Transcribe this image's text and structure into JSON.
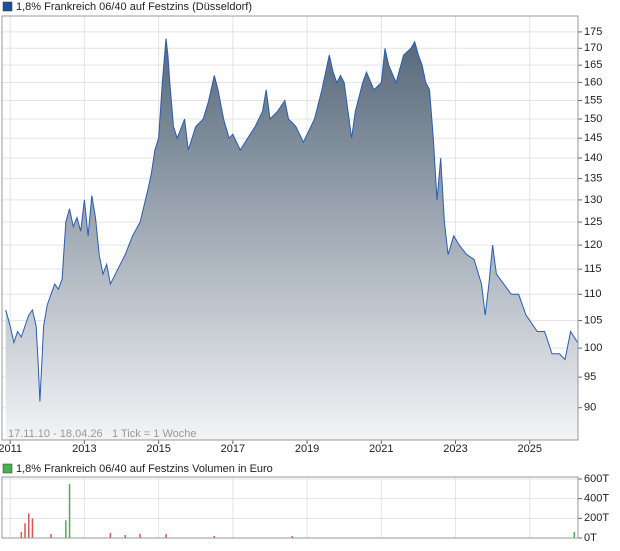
{
  "chart_data": [
    {
      "type": "area",
      "title": "1,8% Frankreich 06/40 auf Festzins (Düsseldorf)",
      "legend_color": "#1f4e9c",
      "color": "#2a5cb0",
      "fill_gradient": [
        "#56687a",
        "#f3f4f6"
      ],
      "log_scale": true,
      "grid": true,
      "annotations": [
        "17.11.10 - 18.04.26",
        "1 Tick = 1 Woche"
      ],
      "xlim": [
        2010.78,
        2026.3
      ],
      "xticks": [
        2011,
        2013,
        2015,
        2017,
        2019,
        2021,
        2023,
        2025
      ],
      "ylim": [
        85,
        180
      ],
      "yticks": [
        90,
        95,
        100,
        105,
        110,
        115,
        120,
        125,
        130,
        135,
        140,
        145,
        150,
        155,
        160,
        165,
        170,
        175
      ],
      "x": [
        2010.88,
        2011.0,
        2011.1,
        2011.2,
        2011.3,
        2011.4,
        2011.5,
        2011.6,
        2011.7,
        2011.75,
        2011.8,
        2011.85,
        2011.9,
        2012.0,
        2012.1,
        2012.2,
        2012.3,
        2012.4,
        2012.5,
        2012.6,
        2012.7,
        2012.8,
        2012.9,
        2013.0,
        2013.1,
        2013.2,
        2013.3,
        2013.4,
        2013.5,
        2013.6,
        2013.7,
        2013.9,
        2014.1,
        2014.3,
        2014.5,
        2014.7,
        2014.8,
        2014.9,
        2015.0,
        2015.1,
        2015.2,
        2015.25,
        2015.3,
        2015.4,
        2015.5,
        2015.7,
        2015.8,
        2016.0,
        2016.2,
        2016.35,
        2016.5,
        2016.6,
        2016.75,
        2016.9,
        2017.0,
        2017.2,
        2017.4,
        2017.6,
        2017.8,
        2017.9,
        2018.0,
        2018.2,
        2018.4,
        2018.5,
        2018.7,
        2018.9,
        2019.0,
        2019.2,
        2019.4,
        2019.6,
        2019.7,
        2019.8,
        2019.9,
        2020.0,
        2020.2,
        2020.3,
        2020.5,
        2020.6,
        2020.8,
        2021.0,
        2021.1,
        2021.2,
        2021.4,
        2021.6,
        2021.8,
        2021.9,
        2022.0,
        2022.1,
        2022.2,
        2022.3,
        2022.4,
        2022.5,
        2022.6,
        2022.7,
        2022.8,
        2022.95,
        2023.1,
        2023.3,
        2023.5,
        2023.7,
        2023.8,
        2023.9,
        2024.0,
        2024.1,
        2024.3,
        2024.5,
        2024.7,
        2024.9,
        2025.0,
        2025.2,
        2025.4,
        2025.6,
        2025.8,
        2025.95,
        2026.1,
        2026.29
      ],
      "values": [
        107,
        104,
        101,
        103,
        102,
        104,
        106,
        107,
        104,
        98,
        91,
        97,
        104,
        108,
        110,
        112,
        111,
        113,
        125,
        128,
        124,
        126,
        123,
        130,
        122,
        131,
        126,
        118,
        114,
        116,
        112,
        115,
        118,
        122,
        125,
        132,
        136,
        142,
        145,
        160,
        173,
        168,
        160,
        148,
        145,
        150,
        142,
        148,
        150,
        155,
        162,
        158,
        150,
        145,
        146,
        142,
        145,
        148,
        152,
        158,
        150,
        152,
        155,
        150,
        148,
        144,
        146,
        150,
        158,
        168,
        163,
        160,
        162,
        160,
        145,
        152,
        160,
        163,
        158,
        160,
        170,
        165,
        160,
        168,
        170,
        172,
        168,
        165,
        160,
        158,
        145,
        130,
        140,
        125,
        118,
        122,
        120,
        118,
        117,
        112,
        106,
        112,
        120,
        114,
        112,
        110,
        110,
        106,
        105,
        103,
        103,
        99,
        99,
        98,
        103,
        101
      ]
    },
    {
      "type": "bar",
      "title": "1,8% Frankreich 06/40 auf Festzins Volumen in Euro",
      "legend_color": "#4cae4c",
      "grid": true,
      "xlim": [
        2010.78,
        2026.3
      ],
      "xticks": [
        2011,
        2013,
        2015,
        2017,
        2019,
        2021,
        2023,
        2025
      ],
      "ylim": [
        0,
        620000
      ],
      "yticks": [
        {
          "value": 0,
          "label": "0T"
        },
        {
          "value": 200000,
          "label": "200T"
        },
        {
          "value": 400000,
          "label": "400T"
        },
        {
          "value": 600000,
          "label": "600T"
        }
      ],
      "x": [
        2011.3,
        2011.4,
        2011.5,
        2011.6,
        2012.1,
        2012.5,
        2012.6,
        2013.7,
        2014.1,
        2014.5,
        2015.2,
        2016.5,
        2018.6,
        2026.2
      ],
      "values": [
        60000,
        150000,
        250000,
        200000,
        40000,
        180000,
        550000,
        50000,
        30000,
        40000,
        40000,
        20000,
        20000,
        60000
      ],
      "colors": [
        "#d9534f",
        "#d9534f",
        "#d9534f",
        "#d9534f",
        "#d9534f",
        "#4cae4c",
        "#4cae4c",
        "#d9534f",
        "#d9534f",
        "#d9534f",
        "#d9534f",
        "#d9534f",
        "#d9534f",
        "#4cae4c"
      ]
    }
  ]
}
